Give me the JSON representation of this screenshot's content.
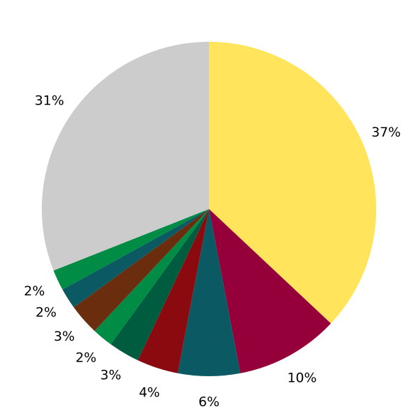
{
  "chart_data": {
    "type": "pie",
    "start": "top",
    "direction": "clockwise",
    "values": [
      37,
      10,
      6,
      4,
      3,
      2,
      3,
      2,
      2,
      31
    ],
    "labels": [
      "37%",
      "10%",
      "6%",
      "4%",
      "3%",
      "2%",
      "3%",
      "2%",
      "2%",
      "31%"
    ],
    "colors": [
      "#FFE45C",
      "#95003A",
      "#0B5A63",
      "#8B0A10",
      "#005C3E",
      "#008C45",
      "#6A2D0D",
      "#0B5A63",
      "#008C45",
      "#CCCCCC"
    ]
  }
}
